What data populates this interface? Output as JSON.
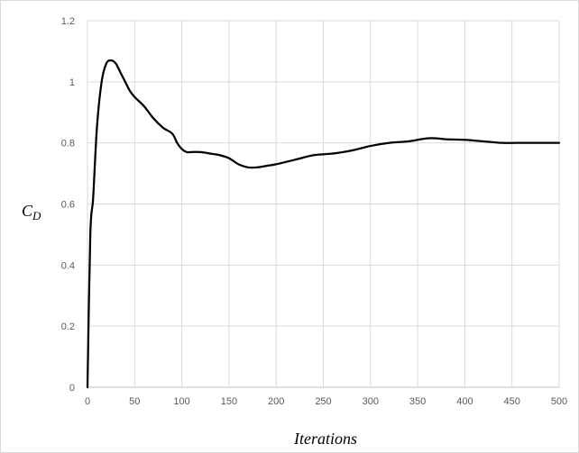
{
  "chart_data": {
    "type": "line",
    "title": "",
    "xlabel": "Iterations",
    "ylabel": {
      "main": "C",
      "sub": "D"
    },
    "xlim": [
      0,
      500
    ],
    "ylim": [
      0,
      1.2
    ],
    "x_ticks": [
      0,
      50,
      100,
      150,
      200,
      250,
      300,
      350,
      400,
      450,
      500
    ],
    "y_ticks": [
      0,
      0.2,
      0.4,
      0.6,
      0.8,
      1.0,
      1.2
    ],
    "y_tick_labels": [
      "0",
      "0.2",
      "0.4",
      "0.6",
      "0.8",
      "1",
      "1.2"
    ],
    "grid": "vertical and horizontal",
    "legend": "none",
    "series": [
      {
        "color": "#000000",
        "x": [
          0,
          3,
          6,
          10,
          15,
          20,
          25,
          30,
          35,
          40,
          45,
          50,
          60,
          70,
          80,
          90,
          95,
          100,
          105,
          110,
          120,
          130,
          140,
          150,
          160,
          170,
          180,
          190,
          200,
          220,
          240,
          260,
          280,
          300,
          320,
          340,
          350,
          360,
          370,
          380,
          400,
          420,
          440,
          455,
          470,
          500
        ],
        "y": [
          0,
          0.5,
          0.62,
          0.85,
          1.0,
          1.06,
          1.07,
          1.06,
          1.03,
          1.0,
          0.97,
          0.95,
          0.92,
          0.88,
          0.85,
          0.83,
          0.8,
          0.78,
          0.77,
          0.77,
          0.77,
          0.765,
          0.76,
          0.75,
          0.73,
          0.72,
          0.72,
          0.725,
          0.73,
          0.745,
          0.76,
          0.765,
          0.775,
          0.79,
          0.8,
          0.805,
          0.81,
          0.815,
          0.815,
          0.812,
          0.81,
          0.805,
          0.8,
          0.8,
          0.8,
          0.8
        ]
      }
    ]
  }
}
